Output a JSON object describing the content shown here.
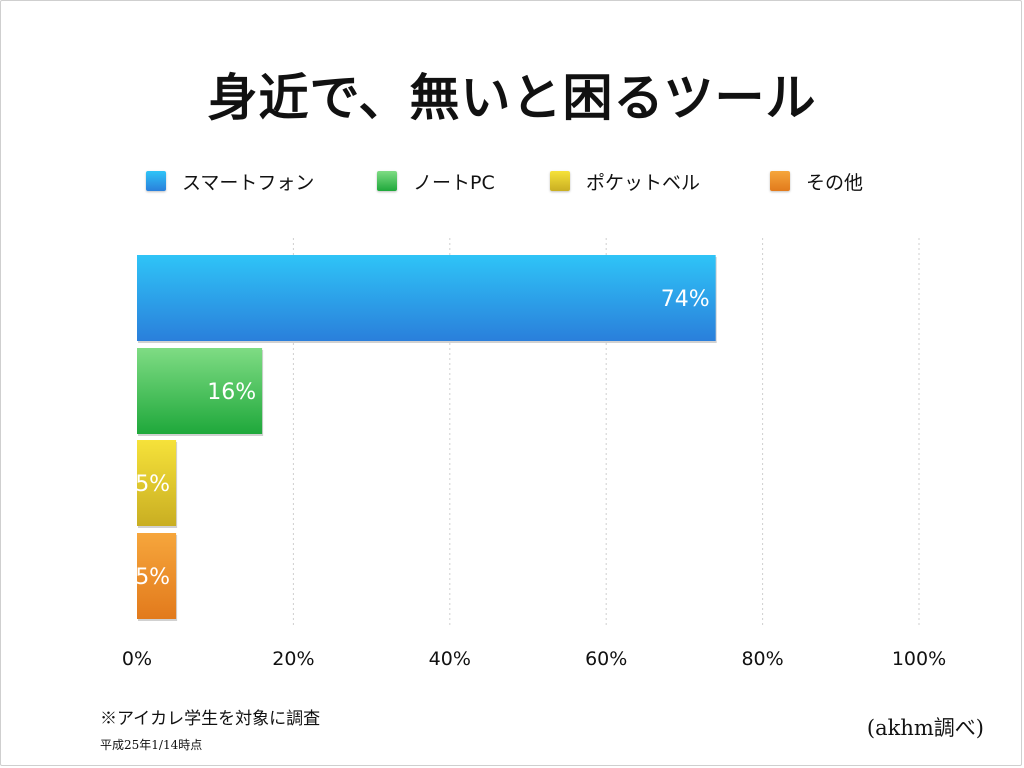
{
  "title": "身近で、無いと困るツール",
  "colors": {
    "smartphone": [
      "#2fc4f7",
      "#2a7fdb"
    ],
    "notepc": [
      "#7fdc84",
      "#1fa83b"
    ],
    "pager": [
      "#f6e23a",
      "#c9ae22"
    ],
    "other": [
      "#f6a63c",
      "#e27a1c"
    ]
  },
  "legend": [
    {
      "label": "スマートフォン",
      "color_key": "smartphone"
    },
    {
      "label": "ノートPC",
      "color_key": "notepc"
    },
    {
      "label": "ポケットベル",
      "color_key": "pager"
    },
    {
      "label": "その他",
      "color_key": "other"
    }
  ],
  "chart_data": {
    "type": "bar",
    "orientation": "horizontal",
    "title": "身近で、無いと困るツール",
    "categories": [
      "スマートフォン",
      "ノートPC",
      "ポケットベル",
      "その他"
    ],
    "values": [
      74,
      16,
      5,
      5
    ],
    "value_labels": [
      "74%",
      "16%",
      "5%",
      "5%"
    ],
    "xlim": [
      0,
      100
    ],
    "x_ticks": [
      "0%",
      "20%",
      "40%",
      "60%",
      "80%",
      "100%"
    ],
    "grid": true,
    "legend_position": "top"
  },
  "notes": {
    "main": "※アイカレ学生を対象に調査",
    "sub": "平成25年1/14時点"
  },
  "credit": "(akhm調べ)"
}
